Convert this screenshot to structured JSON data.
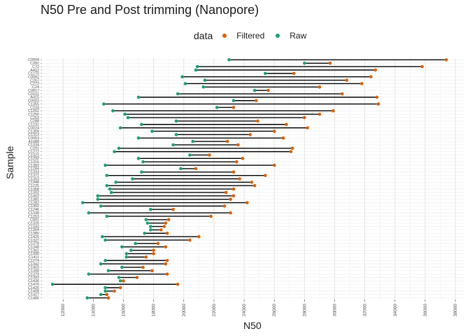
{
  "chart_data": {
    "type": "dumbbell",
    "title": "N50 Pre and Post trimming (Nanopore)",
    "xlabel": "N50",
    "ylabel": "Sample",
    "xlim": [
      10600,
      38600
    ],
    "x_ticks": [
      "12000",
      "14000",
      "16000",
      "18000",
      "20000",
      "22000",
      "24000",
      "26000",
      "28000",
      "30000",
      "32000",
      "34000",
      "36000",
      "38000"
    ],
    "grid": true,
    "legend": {
      "title": "data",
      "position": "top",
      "entries": [
        {
          "label": "Filtered",
          "color": "#D95F02"
        },
        {
          "label": "Raw",
          "color": "#1B9E77"
        }
      ]
    },
    "series": [
      {
        "name": "Filtered",
        "color": "#D95F02"
      },
      {
        "name": "Raw",
        "color": "#1B9E77"
      }
    ],
    "rows": [
      {
        "label": "C0004",
        "raw": 23000,
        "filtered": 37400
      },
      {
        "label": "C281",
        "raw": 28000,
        "filtered": 29700
      },
      {
        "label": "C73",
        "raw": 20900,
        "filtered": 35800
      },
      {
        "label": "A412",
        "raw": 20800,
        "filtered": 32700
      },
      {
        "label": "C1270",
        "raw": 25400,
        "filtered": 27300
      },
      {
        "label": "C0062",
        "raw": 19900,
        "filtered": 32400
      },
      {
        "label": "C267",
        "raw": 21400,
        "filtered": 30800
      },
      {
        "label": "C273",
        "raw": 20100,
        "filtered": 31800
      },
      {
        "label": "C24",
        "raw": 21300,
        "filtered": 29000
      },
      {
        "label": "C0817",
        "raw": 24700,
        "filtered": 25600
      },
      {
        "label": "C0101",
        "raw": 19600,
        "filtered": 30500
      },
      {
        "label": "A415",
        "raw": 17000,
        "filtered": 32800
      },
      {
        "label": "C0003",
        "raw": 23300,
        "filtered": 24800
      },
      {
        "label": "C1355",
        "raw": 14700,
        "filtered": 32900
      },
      {
        "label": "C234",
        "raw": 22200,
        "filtered": 23300
      },
      {
        "label": "C1262",
        "raw": 15300,
        "filtered": 29900
      },
      {
        "label": "C1250",
        "raw": 16100,
        "filtered": 29000
      },
      {
        "label": "C253",
        "raw": 16300,
        "filtered": 28000
      },
      {
        "label": "C288",
        "raw": 19500,
        "filtered": 24900
      },
      {
        "label": "C1231",
        "raw": 17200,
        "filtered": 26800
      },
      {
        "label": "C0024",
        "raw": 15800,
        "filtered": 28200
      },
      {
        "label": "C1309",
        "raw": 17900,
        "filtered": 26000
      },
      {
        "label": "C1313",
        "raw": 19500,
        "filtered": 24400
      },
      {
        "label": "C0053",
        "raw": 17000,
        "filtered": 26600
      },
      {
        "label": "A1088",
        "raw": 20600,
        "filtered": 22900
      },
      {
        "label": "C1334",
        "raw": 19300,
        "filtered": 23600
      },
      {
        "label": "C291",
        "raw": 15700,
        "filtered": 27200
      },
      {
        "label": "C1272",
        "raw": 15400,
        "filtered": 27100
      },
      {
        "label": "C1321",
        "raw": 20400,
        "filtered": 21700
      },
      {
        "label": "C1292",
        "raw": 17000,
        "filtered": 23900
      },
      {
        "label": "C1316",
        "raw": 17300,
        "filtered": 23500
      },
      {
        "label": "C1383",
        "raw": 14800,
        "filtered": 26000
      },
      {
        "label": "C1284",
        "raw": 19800,
        "filtered": 20800
      },
      {
        "label": "C1333",
        "raw": 17200,
        "filtered": 23300
      },
      {
        "label": "C1372",
        "raw": 14900,
        "filtered": 25400
      },
      {
        "label": "C1353",
        "raw": 16600,
        "filtered": 23700
      },
      {
        "label": "C1348",
        "raw": 15500,
        "filtered": 24500
      },
      {
        "label": "C1225",
        "raw": 14900,
        "filtered": 24700
      },
      {
        "label": "C1358",
        "raw": 15100,
        "filtered": 23300
      },
      {
        "label": "C1302",
        "raw": 15200,
        "filtered": 22800
      },
      {
        "label": "C1402",
        "raw": 14300,
        "filtered": 23300
      },
      {
        "label": "C1381",
        "raw": 14300,
        "filtered": 23100
      },
      {
        "label": "C1282",
        "raw": 13300,
        "filtered": 24200
      },
      {
        "label": "C1302",
        "raw": 14500,
        "filtered": 22700
      },
      {
        "label": "C1246",
        "raw": 17800,
        "filtered": 19300
      },
      {
        "label": "C1338",
        "raw": 13700,
        "filtered": 23100
      },
      {
        "label": "C1253",
        "raw": 14900,
        "filtered": 21800
      },
      {
        "label": "C891",
        "raw": 17500,
        "filtered": 19000
      },
      {
        "label": "C1326",
        "raw": 17600,
        "filtered": 18800
      },
      {
        "label": "C1343",
        "raw": 17800,
        "filtered": 18700
      },
      {
        "label": "C1364",
        "raw": 17800,
        "filtered": 18500
      },
      {
        "label": "C1380",
        "raw": 17400,
        "filtered": 18900
      },
      {
        "label": "C1425",
        "raw": 14600,
        "filtered": 21000
      },
      {
        "label": "C1327",
        "raw": 14800,
        "filtered": 20400
      },
      {
        "label": "C1378",
        "raw": 16800,
        "filtered": 18300
      },
      {
        "label": "C1348",
        "raw": 15900,
        "filtered": 18800
      },
      {
        "label": "C1361",
        "raw": 16500,
        "filtered": 18000
      },
      {
        "label": "C1390",
        "raw": 16200,
        "filtered": 18000
      },
      {
        "label": "C1411",
        "raw": 16200,
        "filtered": 17500
      },
      {
        "label": "C1274",
        "raw": 14800,
        "filtered": 18900
      },
      {
        "label": "C1342",
        "raw": 14500,
        "filtered": 18800
      },
      {
        "label": "C1403",
        "raw": 15900,
        "filtered": 17300
      },
      {
        "label": "C1308",
        "raw": 15000,
        "filtered": 17900
      },
      {
        "label": "C1379",
        "raw": 13700,
        "filtered": 18900
      },
      {
        "label": "C1393",
        "raw": 15700,
        "filtered": 16900
      },
      {
        "label": "C1436",
        "raw": 15800,
        "filtered": 16000
      },
      {
        "label": "C1470",
        "raw": 11300,
        "filtered": 19600
      },
      {
        "label": "C1420",
        "raw": 14800,
        "filtered": 15800
      },
      {
        "label": "C1408",
        "raw": 14800,
        "filtered": 15400
      },
      {
        "label": "C1427",
        "raw": 14500,
        "filtered": 14900
      },
      {
        "label": "C1480",
        "raw": 13600,
        "filtered": 15000
      }
    ]
  }
}
